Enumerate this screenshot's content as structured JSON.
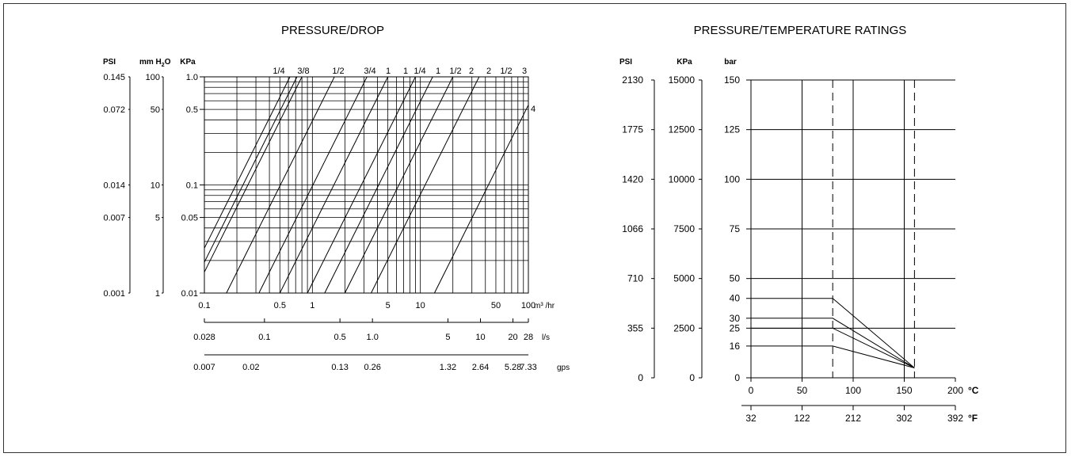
{
  "chart_data": [
    {
      "type": "line",
      "title": "PRESSURE/DROP",
      "x_scale": "log",
      "y_scale": "log",
      "x_axis": {
        "unit": "m³ /hr",
        "range": [
          0.1,
          100
        ],
        "tick_labels": [
          "0.1",
          "0.5",
          "1",
          "5",
          "10",
          "50",
          "100"
        ],
        "tick_values": [
          0.1,
          0.5,
          1,
          5,
          10,
          50,
          100
        ]
      },
      "secondary_x_axes": [
        {
          "unit": "l/s",
          "tick_labels": [
            "0.028",
            "0.1",
            "0.5",
            "1.0",
            "5",
            "10",
            "20",
            "28"
          ],
          "tick_values_m3hr": [
            0.1,
            0.36,
            1.8,
            3.6,
            18,
            36,
            72,
            100
          ]
        },
        {
          "unit": "gps",
          "tick_labels": [
            "0.007",
            "0.02",
            "0.13",
            "0.26",
            "1.32",
            "2.64",
            "5.28",
            "7.33"
          ],
          "tick_values_m3hr": [
            0.1,
            0.27,
            1.8,
            3.6,
            18,
            36,
            72,
            100
          ]
        }
      ],
      "y_axes": [
        {
          "label": "PSI",
          "ticks": [
            {
              "label": "0.145",
              "kpa": 1.0
            },
            {
              "label": "0.072",
              "kpa": 0.5
            },
            {
              "label": "0.014",
              "kpa": 0.1
            },
            {
              "label": "0.007",
              "kpa": 0.05
            },
            {
              "label": "0.001",
              "kpa": 0.01
            }
          ]
        },
        {
          "label_main": "mm H",
          "label_sub": "2",
          "label_tail": "O",
          "ticks": [
            {
              "label": "100",
              "kpa": 1.0
            },
            {
              "label": "50",
              "kpa": 0.5
            },
            {
              "label": "10",
              "kpa": 0.1
            },
            {
              "label": "5",
              "kpa": 0.05
            },
            {
              "label": "1",
              "kpa": 0.01
            }
          ]
        },
        {
          "label": "KPa",
          "range": [
            0.01,
            1.0
          ],
          "ticks": [
            {
              "label": "1.0",
              "kpa": 1.0
            },
            {
              "label": "0.5",
              "kpa": 0.5
            },
            {
              "label": "0.1",
              "kpa": 0.1
            },
            {
              "label": "0.05",
              "kpa": 0.05
            },
            {
              "label": "0.01",
              "kpa": 0.01
            }
          ]
        }
      ],
      "series": [
        {
          "name": "1/4",
          "x_at_1kpa": 0.62,
          "x_at_001kpa": 0.062
        },
        {
          "name": "3/8",
          "x_at_1kpa": 0.72,
          "x_at_001kpa": 0.072
        },
        {
          "name": "1/2",
          "x_at_1kpa": 0.8,
          "x_at_001kpa": 0.08
        },
        {
          "name": "3/4",
          "x_at_1kpa": 1.6,
          "x_at_001kpa": 0.16
        },
        {
          "name": "1",
          "x_at_1kpa": 3.2,
          "x_at_001kpa": 0.32
        },
        {
          "name": "1 1/4",
          "x_at_1kpa": 5.0,
          "x_at_001kpa": 0.5
        },
        {
          "name": "1 1/2",
          "x_at_1kpa": 9.0,
          "x_at_001kpa": 0.9
        },
        {
          "name": "2",
          "x_at_1kpa": 13.0,
          "x_at_001kpa": 1.3
        },
        {
          "name": "2 1/2",
          "x_at_1kpa": 20.0,
          "x_at_001kpa": 2.0
        },
        {
          "name": "3",
          "x_at_1kpa": 35.0,
          "x_at_001kpa": 3.5
        },
        {
          "name": "4",
          "x_at_1kpa": 135.0,
          "x_at_001kpa": 13.5
        }
      ],
      "top_labels": [
        "1/4",
        "3/8",
        "1/2",
        "3/4",
        "1",
        "1",
        "1/4",
        "1",
        "1/2",
        "2",
        "2",
        "1/2",
        "3"
      ],
      "right_label": "4"
    },
    {
      "type": "line",
      "title": "PRESSURE/TEMPERATURE RATINGS",
      "x_axis": {
        "unit": "°C",
        "range": [
          0,
          200
        ],
        "tick_labels": [
          "0",
          "50",
          "100",
          "150",
          "200"
        ],
        "tick_values": [
          0,
          50,
          100,
          150,
          200
        ]
      },
      "secondary_x_axis": {
        "unit": "°F",
        "tick_labels": [
          "32",
          "122",
          "212",
          "302",
          "392"
        ],
        "tick_values_c": [
          0,
          50,
          100,
          150,
          200
        ]
      },
      "y_axes": [
        {
          "label": "PSI",
          "tick_labels": [
            "2130",
            "1775",
            "1420",
            "1066",
            "710",
            "355",
            "0"
          ],
          "tick_values_bar": [
            150,
            125,
            100,
            75,
            50,
            25,
            0
          ]
        },
        {
          "label": "KPa",
          "tick_labels": [
            "15000",
            "12500",
            "10000",
            "7500",
            "5000",
            "2500",
            "0"
          ],
          "tick_values_bar": [
            150,
            125,
            100,
            75,
            50,
            25,
            0
          ]
        },
        {
          "label": "bar",
          "range": [
            0,
            150
          ],
          "tick_labels": [
            "150",
            "125",
            "100",
            "75",
            "50",
            "40",
            "30",
            "25",
            "16",
            "0"
          ],
          "tick_values": [
            150,
            125,
            100,
            75,
            50,
            40,
            30,
            25,
            16,
            0
          ]
        }
      ],
      "grid_x_c": [
        50,
        100,
        150
      ],
      "dashed_x_c": [
        80,
        160
      ],
      "series": [
        {
          "name": "40",
          "points": [
            [
              0,
              40
            ],
            [
              80,
              40
            ],
            [
              160,
              5
            ]
          ]
        },
        {
          "name": "30",
          "points": [
            [
              0,
              30
            ],
            [
              80,
              30
            ],
            [
              160,
              5
            ]
          ]
        },
        {
          "name": "25",
          "points": [
            [
              0,
              25
            ],
            [
              80,
              25
            ],
            [
              160,
              5
            ]
          ]
        },
        {
          "name": "16",
          "points": [
            [
              0,
              16
            ],
            [
              80,
              16
            ],
            [
              160,
              5
            ]
          ]
        }
      ]
    }
  ]
}
